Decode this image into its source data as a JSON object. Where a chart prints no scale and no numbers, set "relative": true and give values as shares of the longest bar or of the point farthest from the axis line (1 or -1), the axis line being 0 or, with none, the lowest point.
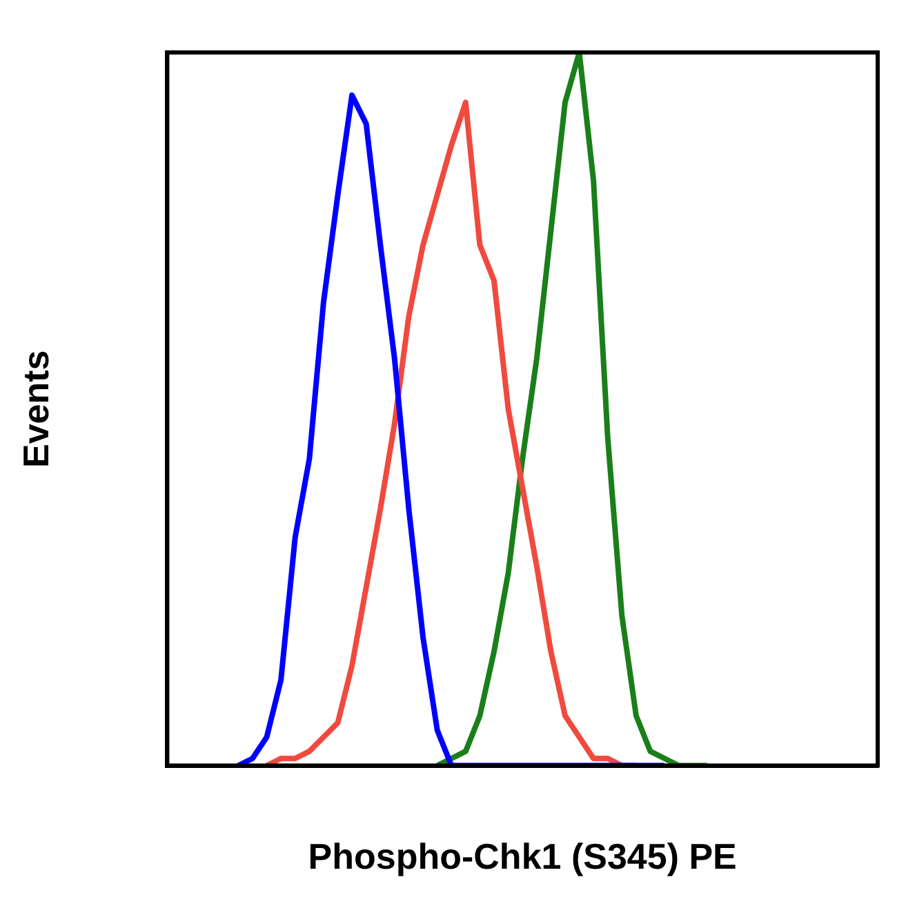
{
  "chart_data": {
    "type": "line",
    "relative": true,
    "xlabel": "Phospho-Chk1 (S345) PE",
    "ylabel": "Events",
    "tick_labels": false,
    "grid": false,
    "legend": false,
    "marker": "none",
    "line_style": "solid",
    "categories": [
      null,
      null,
      null,
      null,
      null,
      null,
      null,
      null,
      null,
      null,
      null,
      null,
      null,
      null,
      null,
      null,
      null,
      null,
      null,
      null,
      null,
      null,
      null,
      null,
      null,
      null,
      null,
      null,
      null,
      null,
      null,
      null,
      null,
      null,
      null,
      null,
      null,
      null,
      null,
      null,
      null,
      null,
      null,
      null,
      null,
      null,
      null,
      null,
      null,
      null,
      null
    ],
    "series": [
      {
        "color": "#0000ff",
        "values": [
          null,
          null,
          null,
          null,
          null,
          0,
          0.01,
          0.04,
          0.12,
          0.32,
          0.43,
          0.65,
          0.8,
          0.94,
          0.9,
          0.73,
          0.57,
          0.36,
          0.18,
          0.05,
          0,
          0,
          0,
          0,
          0,
          0,
          0,
          0,
          0,
          0,
          0,
          0,
          0,
          0,
          0,
          0,
          null,
          null,
          null,
          null,
          null,
          null,
          null,
          null,
          null,
          null,
          null,
          null,
          null,
          null,
          null
        ]
      },
      {
        "color": "#f04a3e",
        "values": [
          null,
          null,
          null,
          null,
          null,
          null,
          null,
          0,
          0.01,
          0.01,
          0.02,
          0.04,
          0.06,
          0.14,
          0.25,
          0.36,
          0.48,
          0.63,
          0.73,
          0.8,
          0.87,
          0.93,
          0.73,
          0.68,
          0.5,
          0.39,
          0.28,
          0.16,
          0.07,
          0.04,
          0.01,
          0.01,
          0,
          0,
          null,
          null,
          null,
          null,
          null,
          null,
          null,
          null,
          null,
          null,
          null,
          null,
          null,
          null,
          null,
          null,
          null
        ]
      },
      {
        "color": "#1a7f1a",
        "values": [
          null,
          null,
          null,
          null,
          null,
          null,
          null,
          null,
          null,
          null,
          null,
          null,
          null,
          null,
          null,
          null,
          null,
          null,
          null,
          0,
          0.01,
          0.02,
          0.07,
          0.16,
          0.27,
          0.43,
          0.57,
          0.75,
          0.93,
          1,
          0.82,
          0.46,
          0.21,
          0.07,
          0.02,
          0.01,
          0,
          0,
          0,
          null,
          null,
          null,
          null,
          null,
          null,
          null,
          null,
          null,
          null,
          null,
          null
        ]
      }
    ]
  }
}
